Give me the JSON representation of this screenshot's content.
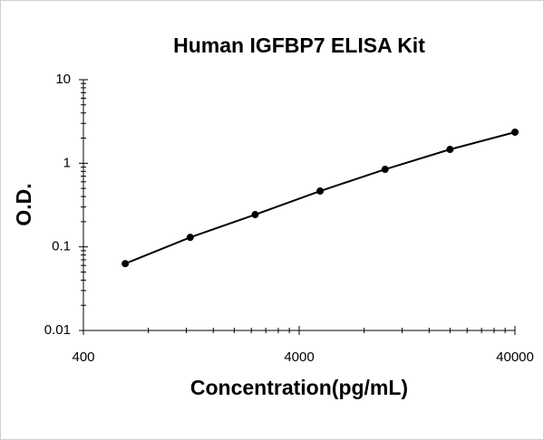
{
  "chart_data": {
    "type": "scatter",
    "title": "Human IGFBP7 ELISA Kit",
    "x_label": "Concentration(pg/mL)",
    "y_label": "O.D.",
    "x": [
      625,
      1250,
      2500,
      5000,
      10000,
      20000,
      40000
    ],
    "series": [
      {
        "values": [
          0.063,
          0.13,
          0.243,
          0.465,
          0.846,
          1.465,
          2.355
        ],
        "color": "#000000"
      }
    ],
    "xlim": [
      400,
      40000
    ],
    "xticks": [
      400,
      4000,
      40000
    ],
    "x_log": true,
    "ylim": [
      0.01,
      10
    ],
    "yticks": [
      0.01,
      0.1,
      1,
      10
    ],
    "y_log": true
  }
}
